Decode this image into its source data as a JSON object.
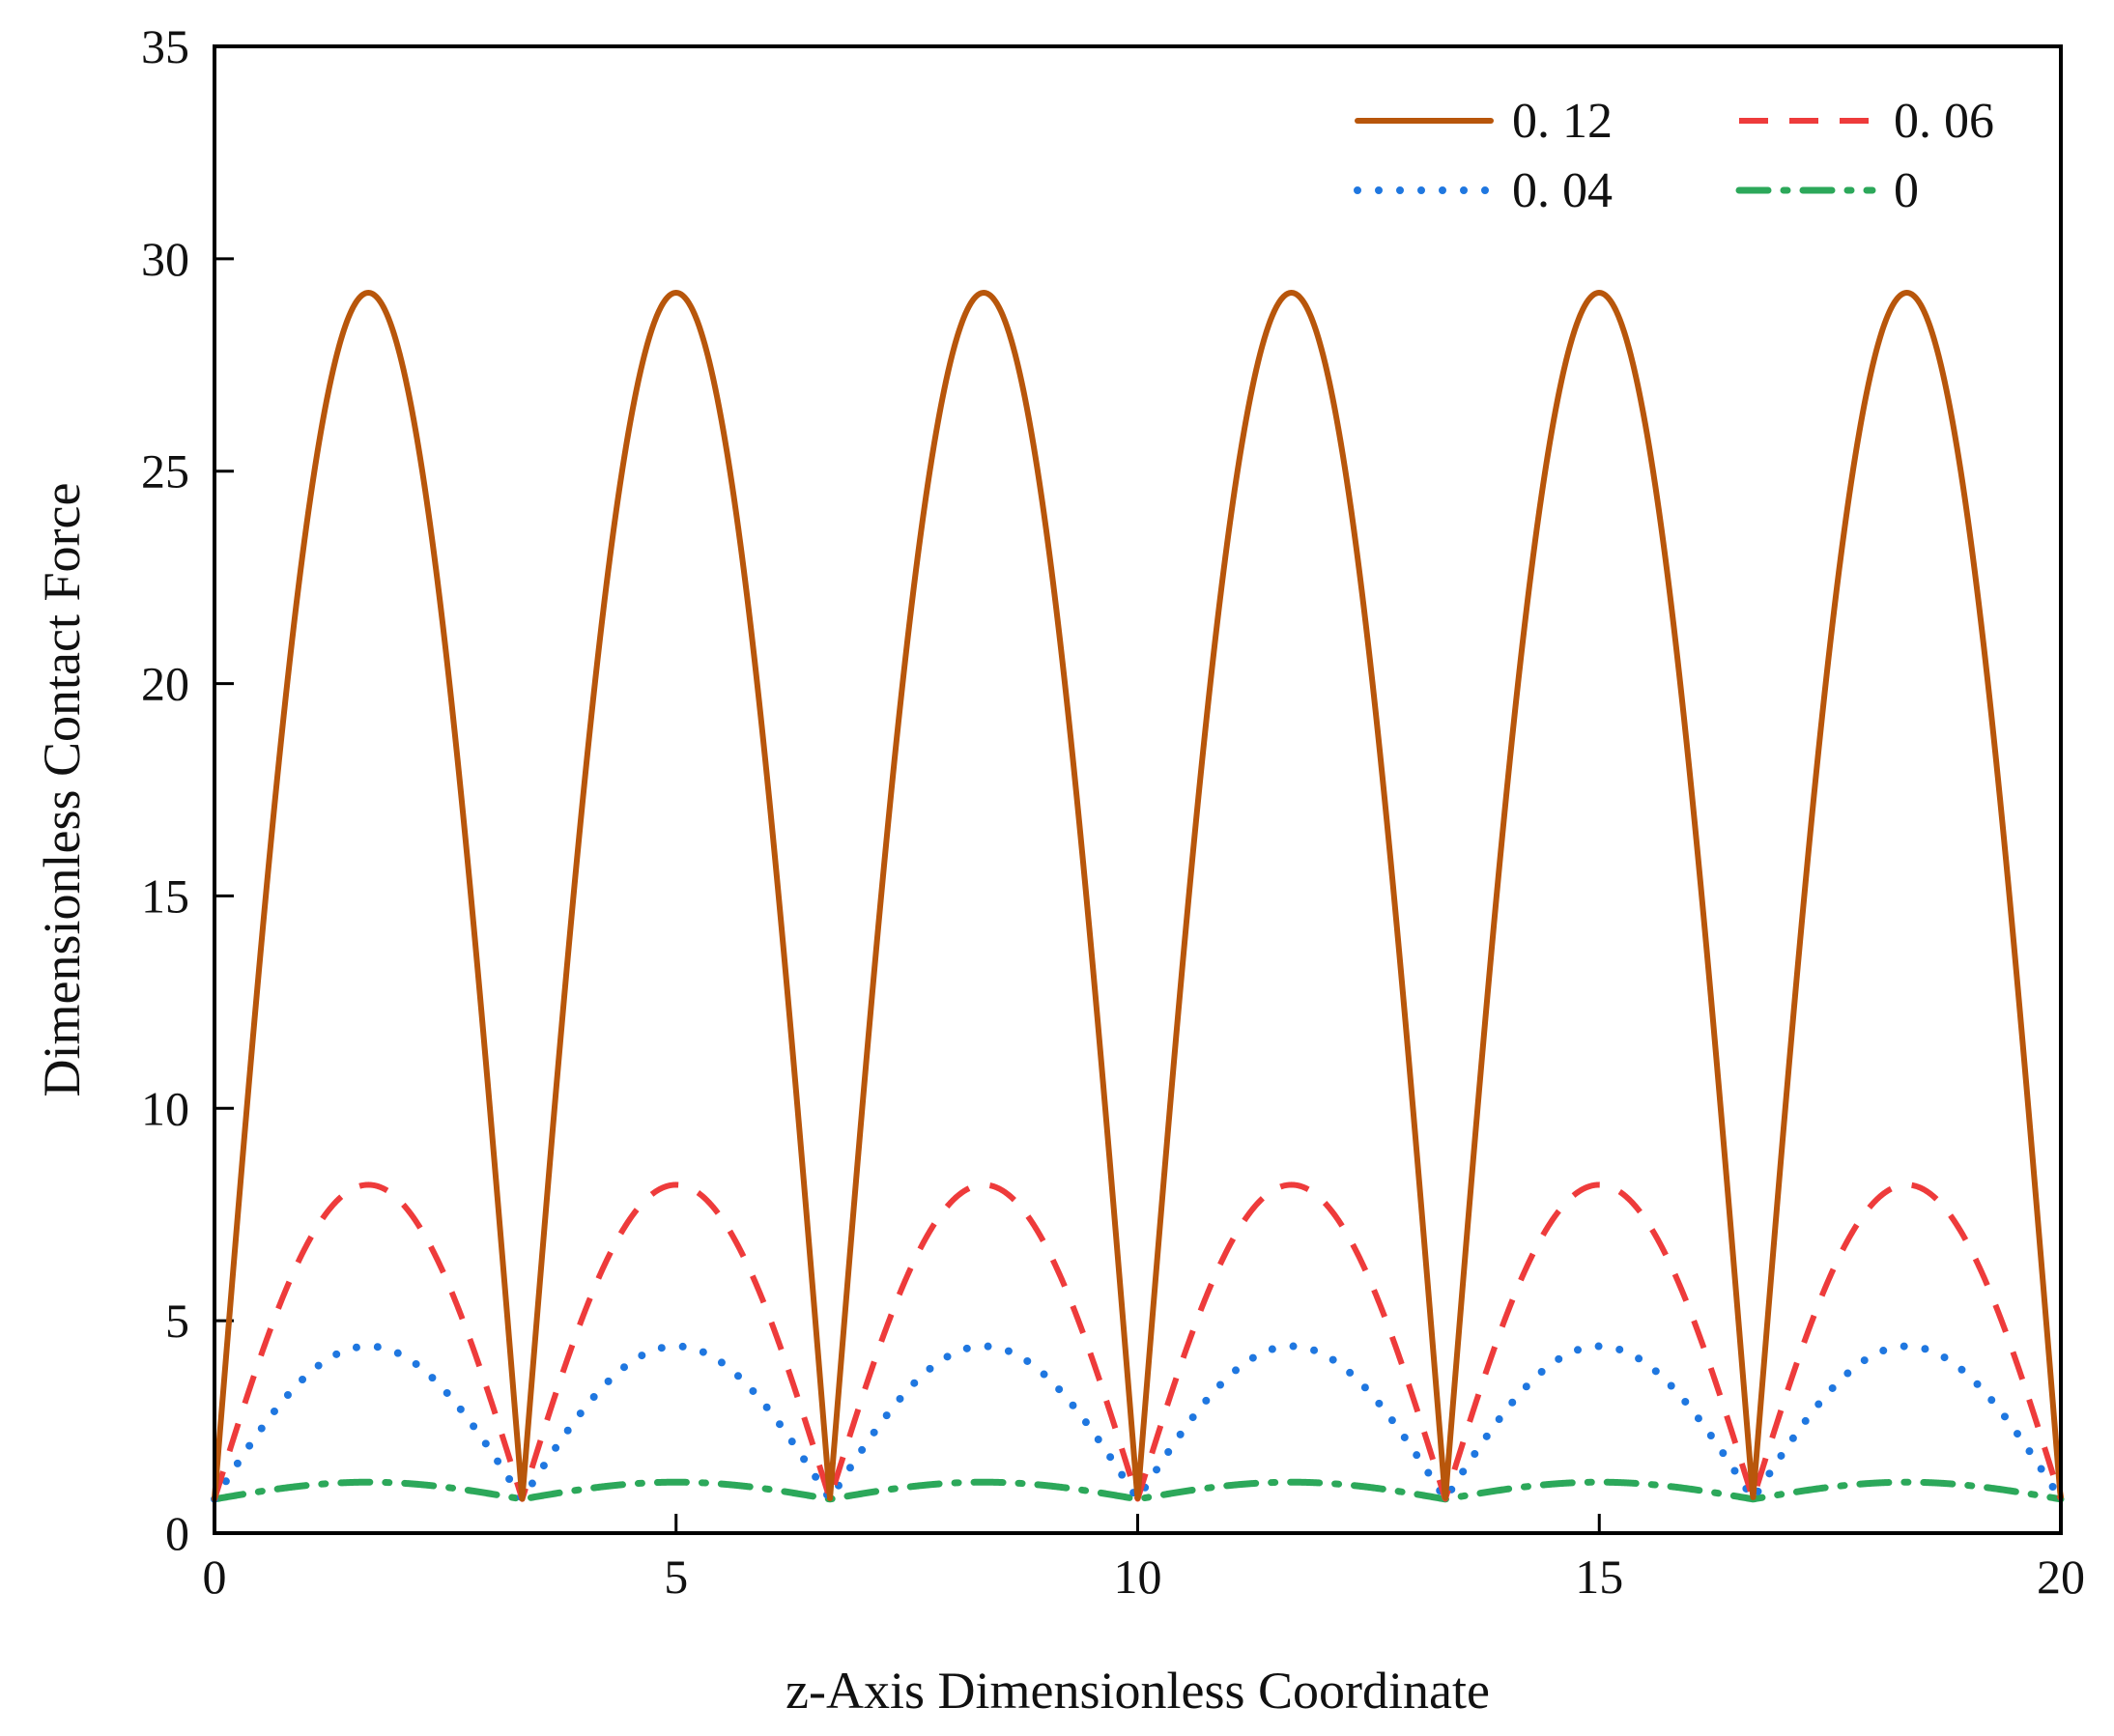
{
  "chart_data": {
    "type": "line",
    "title": "",
    "xlabel": "z-Axis Dimensionless Coordinate",
    "ylabel": "Dimensionless Contact Force",
    "xlim": [
      0,
      20
    ],
    "ylim": [
      0,
      35
    ],
    "xticks": [
      0,
      5,
      10,
      15,
      20
    ],
    "yticks": [
      0,
      5,
      10,
      15,
      20,
      25,
      30,
      35
    ],
    "xtick_labels": [
      "0",
      "5",
      "10",
      "15",
      "20"
    ],
    "ytick_labels": [
      "0",
      "5",
      "10",
      "15",
      "20",
      "25",
      "30",
      "35"
    ],
    "grid": false,
    "legend_position": "top-right",
    "period": 3.333,
    "baseline": 0.8,
    "series": [
      {
        "name": "0. 12",
        "color": "#b8560b",
        "style": "solid",
        "peak": 29.2,
        "peak_x": [
          1.67,
          5.0,
          8.33,
          11.67,
          15.0,
          18.33
        ]
      },
      {
        "name": "0. 06",
        "color": "#ee3b3b",
        "style": "dashed",
        "peak": 8.2,
        "peak_x": [
          1.67,
          5.0,
          8.33,
          11.67,
          15.0,
          18.33
        ]
      },
      {
        "name": "0. 04",
        "color": "#1f77e0",
        "style": "dotted",
        "peak": 4.4,
        "peak_x": [
          1.67,
          5.0,
          8.33,
          11.67,
          15.0,
          18.33
        ]
      },
      {
        "name": "0",
        "color": "#2ca85a",
        "style": "dashdot",
        "peak": 1.2,
        "peak_x": [
          1.67,
          5.0,
          8.33,
          11.67,
          15.0,
          18.33
        ]
      }
    ]
  }
}
